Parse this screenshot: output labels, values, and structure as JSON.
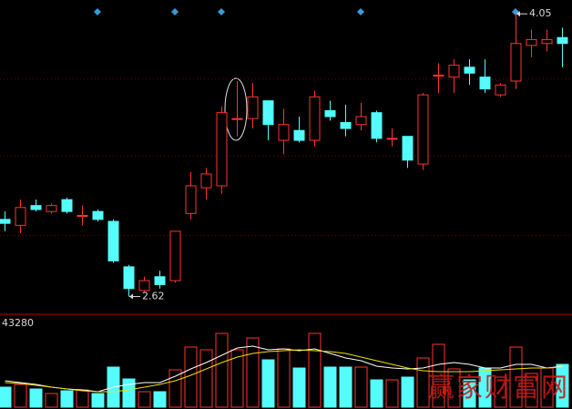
{
  "chart_data": {
    "type": "candlestick",
    "up_color": "#ff3232",
    "down_color": "#54fcfc",
    "grid_color": "#7a0000",
    "ylim": [
      2.53,
      4.12
    ],
    "grid_levels": [
      2.93,
      3.33,
      3.72
    ],
    "open": [
      3.01,
      2.98,
      3.08,
      3.05,
      3.11,
      3.03,
      3.05,
      3.0,
      2.77,
      2.65,
      2.72,
      2.7,
      3.04,
      3.17,
      3.18,
      3.52,
      3.52,
      3.61,
      3.41,
      3.46,
      3.41,
      3.56,
      3.5,
      3.49,
      3.55,
      3.42,
      3.43,
      3.29,
      3.74,
      3.73,
      3.78,
      3.73,
      3.64,
      3.71,
      3.89,
      3.9,
      3.93
    ],
    "high": [
      3.05,
      3.11,
      3.11,
      3.09,
      3.12,
      3.08,
      3.06,
      3.01,
      2.78,
      2.72,
      2.75,
      2.95,
      3.25,
      3.27,
      3.58,
      3.71,
      3.7,
      3.61,
      3.57,
      3.53,
      3.66,
      3.61,
      3.59,
      3.6,
      3.56,
      3.47,
      3.43,
      3.65,
      3.8,
      3.82,
      3.82,
      3.82,
      3.7,
      4.05,
      3.97,
      3.97,
      3.98
    ],
    "low": [
      2.95,
      2.94,
      3.05,
      3.04,
      3.04,
      2.98,
      3.0,
      2.79,
      2.62,
      2.64,
      2.66,
      2.69,
      3.01,
      3.11,
      3.14,
      3.43,
      3.47,
      3.41,
      3.34,
      3.4,
      3.38,
      3.51,
      3.43,
      3.46,
      3.4,
      3.38,
      3.27,
      3.26,
      3.65,
      3.65,
      3.69,
      3.65,
      3.63,
      3.67,
      3.83,
      3.86,
      3.78
    ],
    "close": [
      2.99,
      3.07,
      3.06,
      3.08,
      3.05,
      3.03,
      3.01,
      2.8,
      2.66,
      2.7,
      2.68,
      2.95,
      3.18,
      3.24,
      3.55,
      3.52,
      3.63,
      3.49,
      3.49,
      3.41,
      3.63,
      3.53,
      3.47,
      3.53,
      3.42,
      3.42,
      3.31,
      3.64,
      3.74,
      3.79,
      3.75,
      3.67,
      3.69,
      3.9,
      3.92,
      3.92,
      3.9
    ],
    "low_label": 2.62,
    "high_label": 4.05,
    "vlim": [
      0,
      43280
    ],
    "volume": [
      10350,
      11760,
      9400,
      7060,
      8470,
      8940,
      7060,
      20700,
      14580,
      8000,
      8000,
      19290,
      31050,
      29640,
      38100,
      29640,
      35750,
      24460,
      30110,
      20230,
      38100,
      20700,
      20700,
      20700,
      14110,
      14110,
      15520,
      25400,
      32460,
      19760,
      14110,
      20230,
      15520,
      31050,
      17410,
      20230,
      22110
    ],
    "volume_ma": [
      {
        "color": "#ffffff",
        "values": [
          13640,
          12700,
          11760,
          10350,
          9410,
          8940,
          8000,
          10350,
          11760,
          12700,
          12700,
          15990,
          19760,
          23050,
          26810,
          30580,
          31520,
          29640,
          30110,
          29170,
          30110,
          27750,
          25400,
          23990,
          21170,
          20230,
          19760,
          20230,
          22110,
          23050,
          22110,
          20230,
          20230,
          22110,
          22110,
          20230,
          21170
        ]
      },
      {
        "color": "#f0e000",
        "values": [
          12700,
          12230,
          11290,
          10350,
          9410,
          8470,
          8000,
          8000,
          8940,
          10350,
          11760,
          13640,
          16460,
          19760,
          23050,
          25870,
          27750,
          28690,
          29170,
          29640,
          29170,
          28690,
          27750,
          25870,
          23990,
          22110,
          20230,
          18820,
          18350,
          18350,
          18350,
          18820,
          19290,
          19760,
          20230,
          20230,
          20700
        ]
      }
    ],
    "watermark": "赢家财富网"
  }
}
